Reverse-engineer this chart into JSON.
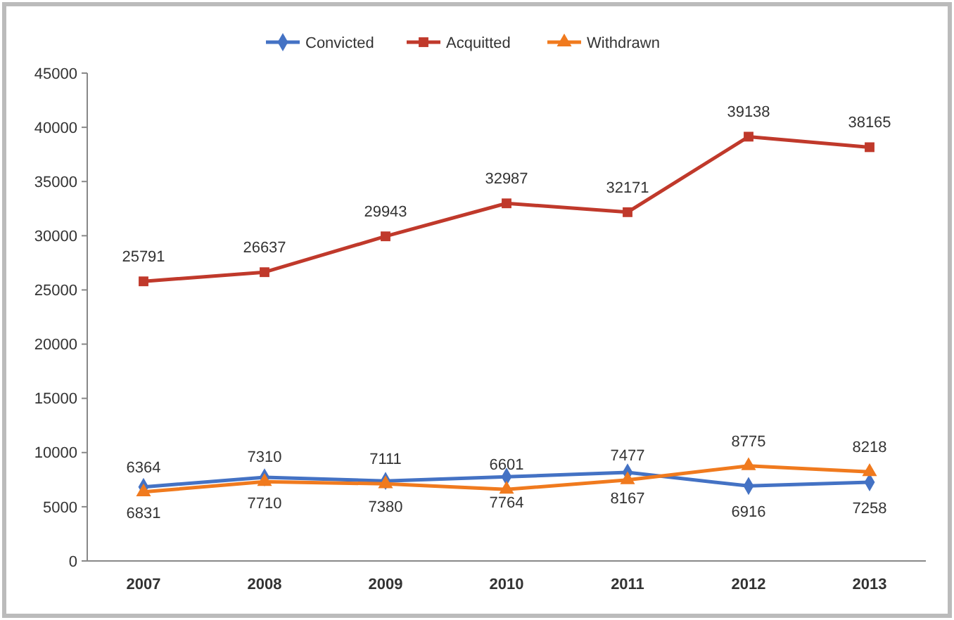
{
  "chart_data": {
    "type": "line",
    "categories": [
      "2007",
      "2008",
      "2009",
      "2010",
      "2011",
      "2012",
      "2013"
    ],
    "series": [
      {
        "name": "Convicted",
        "color": "#4472c4",
        "marker": "diamond",
        "values": [
          6831,
          7710,
          7380,
          7764,
          8167,
          6916,
          7258
        ]
      },
      {
        "name": "Acquitted",
        "color": "#c0392b",
        "marker": "square",
        "values": [
          25791,
          26637,
          29943,
          32987,
          32171,
          39138,
          38165
        ]
      },
      {
        "name": "Withdrawn",
        "color": "#f07a1e",
        "marker": "triangle",
        "values": [
          6364,
          7310,
          7111,
          6601,
          7477,
          8775,
          8218
        ]
      }
    ],
    "ylim": [
      0,
      45000
    ],
    "yticks": [
      0,
      5000,
      10000,
      15000,
      20000,
      25000,
      30000,
      35000,
      40000,
      45000
    ],
    "data_labels": true,
    "legend": "top",
    "grid": false
  }
}
